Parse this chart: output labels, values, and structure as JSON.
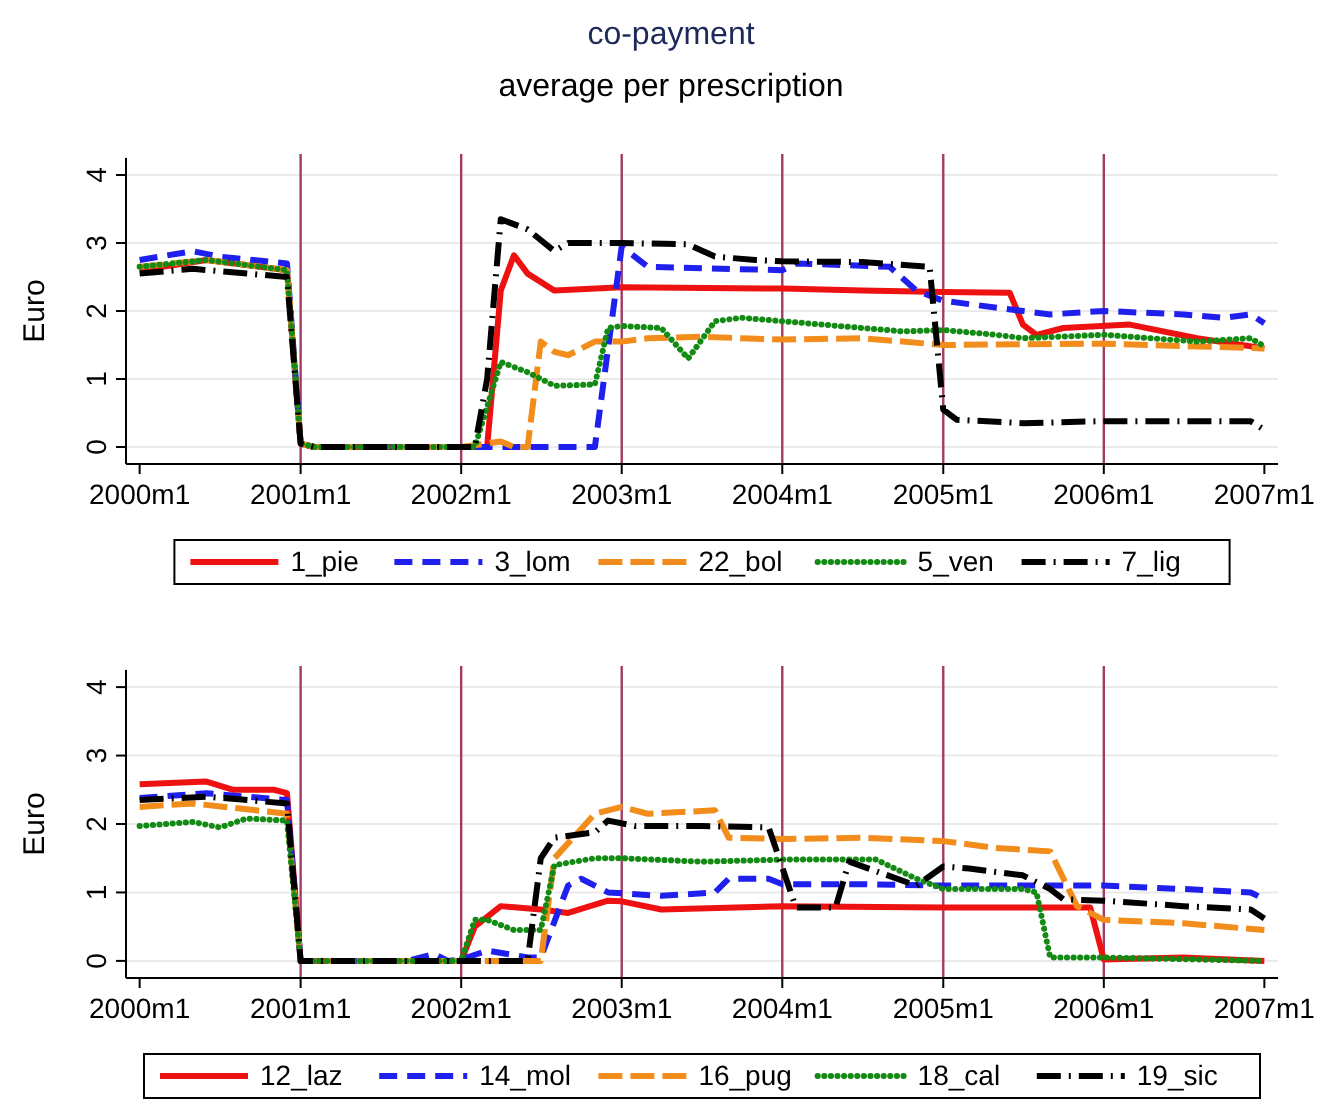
{
  "chart_data": [
    {
      "type": "line",
      "title": "co-payment",
      "subtitle": "average per prescription",
      "ylabel": "Euro",
      "xlim": [
        "1999-12",
        "2007-02"
      ],
      "xticks": [
        {
          "value": "2000-01",
          "label": "2000m1"
        },
        {
          "value": "2001-01",
          "label": "2001m1"
        },
        {
          "value": "2002-01",
          "label": "2002m1"
        },
        {
          "value": "2003-01",
          "label": "2003m1"
        },
        {
          "value": "2004-01",
          "label": "2004m1"
        },
        {
          "value": "2005-01",
          "label": "2005m1"
        },
        {
          "value": "2006-01",
          "label": "2006m1"
        },
        {
          "value": "2007-01",
          "label": "2007m1"
        }
      ],
      "ylim": [
        -0.25,
        4.25
      ],
      "yticks": [
        0,
        1,
        2,
        3,
        4
      ],
      "grid": "y",
      "legend": "bottom",
      "ref_lines": [
        {
          "axis": "x",
          "value": "2001-01",
          "color": "#a23c64"
        },
        {
          "axis": "x",
          "value": "2002-01",
          "color": "#a23c64"
        },
        {
          "axis": "x",
          "value": "2003-01",
          "color": "#a23c64"
        },
        {
          "axis": "x",
          "value": "2004-01",
          "color": "#a23c64"
        },
        {
          "axis": "x",
          "value": "2005-01",
          "color": "#a23c64"
        },
        {
          "axis": "x",
          "value": "2006-01",
          "color": "#a23c64"
        }
      ],
      "series": [
        {
          "name": "1_pie",
          "color": "#ee1111",
          "line_style": "solid",
          "x": [
            "2000-01",
            "2000-06",
            "2000-12",
            "2001-01",
            "2001-02",
            "2002-02",
            "2002-03",
            "2002-04",
            "2002-05",
            "2002-06",
            "2002-08",
            "2003-01",
            "2004-01",
            "2004-07",
            "2005-01",
            "2005-06",
            "2005-07",
            "2005-08",
            "2005-10",
            "2006-03",
            "2006-08",
            "2007-01"
          ],
          "values": [
            2.6,
            2.75,
            2.6,
            0.05,
            0,
            0,
            0,
            2.3,
            2.82,
            2.55,
            2.3,
            2.35,
            2.33,
            2.3,
            2.28,
            2.27,
            1.8,
            1.65,
            1.75,
            1.8,
            1.6,
            1.45
          ]
        },
        {
          "name": "3_lom",
          "color": "#1f1fee",
          "line_style": "dashed",
          "x": [
            "2000-01",
            "2000-05",
            "2000-07",
            "2000-12",
            "2001-01",
            "2001-02",
            "2002-02",
            "2002-11",
            "2003-01",
            "2003-03",
            "2004-01",
            "2004-02",
            "2004-09",
            "2004-11",
            "2005-01",
            "2005-07",
            "2005-09",
            "2006-01",
            "2006-07",
            "2006-10",
            "2006-12",
            "2007-01"
          ],
          "values": [
            2.75,
            2.88,
            2.8,
            2.7,
            0.05,
            0,
            0,
            0,
            2.95,
            2.65,
            2.6,
            2.7,
            2.65,
            2.3,
            2.15,
            2,
            1.95,
            2,
            1.95,
            1.9,
            1.95,
            1.82
          ]
        },
        {
          "name": "22_bol",
          "color": "#f28c1b",
          "line_style": "longdash",
          "x": [
            "2000-01",
            "2000-06",
            "2000-12",
            "2001-01",
            "2001-02",
            "2002-01",
            "2002-04",
            "2002-05",
            "2002-06",
            "2002-07",
            "2002-08",
            "2002-09",
            "2002-11",
            "2003-01",
            "2003-03",
            "2003-07",
            "2004-01",
            "2004-07",
            "2005-01",
            "2006-01",
            "2007-01"
          ],
          "values": [
            2.65,
            2.75,
            2.6,
            0.05,
            0,
            0,
            0.08,
            0,
            0,
            1.55,
            1.4,
            1.35,
            1.55,
            1.55,
            1.6,
            1.62,
            1.58,
            1.6,
            1.5,
            1.52,
            1.45
          ]
        },
        {
          "name": "5_ven",
          "color": "#138a13",
          "line_style": "dotted",
          "x": [
            "2000-01",
            "2000-06",
            "2000-12",
            "2001-01",
            "2001-02",
            "2002-02",
            "2002-04",
            "2002-06",
            "2002-08",
            "2002-11",
            "2002-12",
            "2003-01",
            "2003-04",
            "2003-06",
            "2003-08",
            "2003-10",
            "2004-01",
            "2004-07",
            "2004-10",
            "2005-01",
            "2005-05",
            "2005-07",
            "2006-01",
            "2006-08",
            "2006-12",
            "2007-01"
          ],
          "values": [
            2.65,
            2.75,
            2.6,
            0.05,
            0,
            0,
            1.25,
            1.1,
            0.9,
            0.92,
            1.75,
            1.78,
            1.75,
            1.3,
            1.85,
            1.9,
            1.85,
            1.75,
            1.7,
            1.72,
            1.65,
            1.6,
            1.65,
            1.55,
            1.6,
            1.48
          ]
        },
        {
          "name": "7_lig",
          "color": "#000000",
          "line_style": "dashdot",
          "x": [
            "2000-01",
            "2000-05",
            "2000-12",
            "2001-01",
            "2001-02",
            "2002-02",
            "2002-03",
            "2002-04",
            "2002-06",
            "2002-08",
            "2002-09",
            "2003-01",
            "2003-06",
            "2003-08",
            "2003-11",
            "2004-01",
            "2004-07",
            "2004-12",
            "2005-01",
            "2005-02",
            "2005-07",
            "2006-01",
            "2006-07",
            "2006-12",
            "2007-01"
          ],
          "values": [
            2.55,
            2.62,
            2.5,
            0.05,
            0,
            0,
            1,
            3.35,
            3.2,
            2.88,
            3,
            3,
            2.98,
            2.8,
            2.75,
            2.73,
            2.72,
            2.65,
            0.55,
            0.4,
            0.35,
            0.38,
            0.38,
            0.38,
            0.25
          ]
        }
      ]
    },
    {
      "type": "line",
      "ylabel": "Euro",
      "xlim": [
        "1999-12",
        "2007-02"
      ],
      "xticks": [
        {
          "value": "2000-01",
          "label": "2000m1"
        },
        {
          "value": "2001-01",
          "label": "2001m1"
        },
        {
          "value": "2002-01",
          "label": "2002m1"
        },
        {
          "value": "2003-01",
          "label": "2003m1"
        },
        {
          "value": "2004-01",
          "label": "2004m1"
        },
        {
          "value": "2005-01",
          "label": "2005m1"
        },
        {
          "value": "2006-01",
          "label": "2006m1"
        },
        {
          "value": "2007-01",
          "label": "2007m1"
        }
      ],
      "ylim": [
        -0.25,
        4.25
      ],
      "yticks": [
        0,
        1,
        2,
        3,
        4
      ],
      "grid": "y",
      "legend": "bottom",
      "ref_lines": [
        {
          "axis": "x",
          "value": "2001-01",
          "color": "#a23c64"
        },
        {
          "axis": "x",
          "value": "2002-01",
          "color": "#a23c64"
        },
        {
          "axis": "x",
          "value": "2003-01",
          "color": "#a23c64"
        },
        {
          "axis": "x",
          "value": "2004-01",
          "color": "#a23c64"
        },
        {
          "axis": "x",
          "value": "2005-01",
          "color": "#a23c64"
        },
        {
          "axis": "x",
          "value": "2006-01",
          "color": "#a23c64"
        }
      ],
      "series": [
        {
          "name": "12_laz",
          "color": "#ee1111",
          "line_style": "solid",
          "x": [
            "2000-01",
            "2000-06",
            "2000-08",
            "2000-11",
            "2000-12",
            "2001-01",
            "2002-01",
            "2002-02",
            "2002-04",
            "2002-07",
            "2002-09",
            "2002-12",
            "2003-01",
            "2003-04",
            "2004-01",
            "2005-01",
            "2005-07",
            "2005-12",
            "2006-01",
            "2006-07",
            "2007-01"
          ],
          "values": [
            2.58,
            2.62,
            2.5,
            2.5,
            2.45,
            0,
            0,
            0.5,
            0.8,
            0.75,
            0.7,
            0.88,
            0.87,
            0.75,
            0.8,
            0.78,
            0.78,
            0.78,
            0.02,
            0.05,
            0
          ]
        },
        {
          "name": "14_mol",
          "color": "#1f1fee",
          "line_style": "dashed",
          "x": [
            "2000-01",
            "2000-06",
            "2000-12",
            "2001-01",
            "2001-09",
            "2001-11",
            "2001-12",
            "2002-01",
            "2002-03",
            "2002-06",
            "2002-07",
            "2002-09",
            "2002-10",
            "2002-12",
            "2003-04",
            "2003-08",
            "2003-09",
            "2003-12",
            "2004-01",
            "2004-07",
            "2005-01",
            "2006-01",
            "2006-07",
            "2006-12",
            "2007-01"
          ],
          "values": [
            2.38,
            2.45,
            2.35,
            0,
            0,
            0.1,
            0,
            0.02,
            0.15,
            0.05,
            0.05,
            1.1,
            1.2,
            1,
            0.95,
            1,
            1.2,
            1.2,
            1.12,
            1.12,
            1.1,
            1.1,
            1.05,
            1,
            0.9
          ]
        },
        {
          "name": "16_pug",
          "color": "#f28c1b",
          "line_style": "longdash",
          "x": [
            "2000-01",
            "2000-05",
            "2000-12",
            "2001-01",
            "2002-01",
            "2002-07",
            "2002-08",
            "2002-11",
            "2003-01",
            "2003-03",
            "2003-08",
            "2003-09",
            "2004-01",
            "2004-07",
            "2005-01",
            "2005-05",
            "2005-09",
            "2005-11",
            "2006-01",
            "2006-07",
            "2007-01"
          ],
          "values": [
            2.25,
            2.3,
            2.15,
            0,
            0,
            0,
            1.5,
            2.15,
            2.25,
            2.15,
            2.2,
            1.8,
            1.78,
            1.8,
            1.75,
            1.65,
            1.6,
            0.8,
            0.6,
            0.55,
            0.45
          ]
        },
        {
          "name": "18_cal",
          "color": "#138a13",
          "line_style": "dotted",
          "x": [
            "2000-01",
            "2000-05",
            "2000-07",
            "2000-09",
            "2000-12",
            "2001-01",
            "2002-01",
            "2002-02",
            "2002-03",
            "2002-05",
            "2002-07",
            "2002-08",
            "2002-11",
            "2003-01",
            "2003-07",
            "2004-01",
            "2004-08",
            "2004-11",
            "2005-01",
            "2005-07",
            "2005-08",
            "2005-09",
            "2006-01",
            "2007-01"
          ],
          "values": [
            1.97,
            2.03,
            1.95,
            2.08,
            2.05,
            0,
            0,
            0.6,
            0.6,
            0.45,
            0.45,
            1.4,
            1.5,
            1.5,
            1.45,
            1.48,
            1.48,
            1.2,
            1.05,
            1.05,
            1,
            0.05,
            0.05,
            0
          ]
        },
        {
          "name": "19_sic",
          "color": "#000000",
          "line_style": "dashdot",
          "x": [
            "2000-01",
            "2000-06",
            "2000-12",
            "2001-01",
            "2002-01",
            "2002-06",
            "2002-07",
            "2002-08",
            "2002-11",
            "2002-12",
            "2003-02",
            "2003-07",
            "2003-12",
            "2004-02",
            "2004-05",
            "2004-06",
            "2004-11",
            "2005-01",
            "2005-03",
            "2005-07",
            "2005-09",
            "2005-10",
            "2006-01",
            "2006-07",
            "2006-12",
            "2007-01"
          ],
          "values": [
            2.35,
            2.4,
            2.3,
            0,
            0,
            0,
            1.5,
            1.8,
            1.88,
            2.05,
            1.97,
            1.97,
            1.95,
            0.78,
            0.78,
            1.45,
            1.1,
            1.38,
            1.35,
            1.25,
            1.05,
            0.9,
            0.88,
            0.8,
            0.75,
            0.62
          ]
        }
      ]
    }
  ]
}
